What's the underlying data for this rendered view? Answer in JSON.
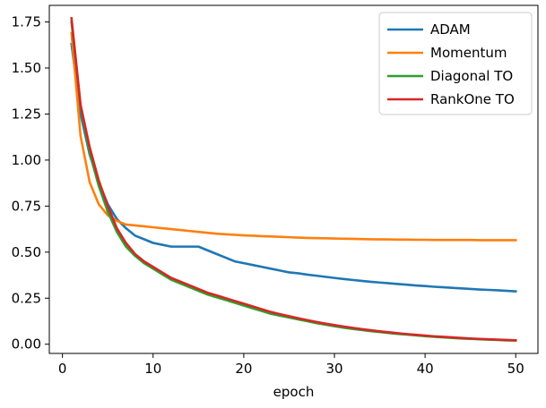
{
  "chart_data": {
    "type": "line",
    "title": "",
    "xlabel": "epoch",
    "ylabel": "",
    "xlim": [
      -1.45,
      52.45
    ],
    "ylim": [
      -0.05,
      1.84
    ],
    "x": [
      1,
      2,
      3,
      4,
      5,
      6,
      7,
      8,
      9,
      10,
      11,
      12,
      13,
      14,
      15,
      16,
      17,
      18,
      19,
      20,
      21,
      22,
      23,
      24,
      25,
      26,
      27,
      28,
      29,
      30,
      31,
      32,
      33,
      34,
      35,
      36,
      37,
      38,
      39,
      40,
      41,
      42,
      43,
      44,
      45,
      46,
      47,
      48,
      49,
      50
    ],
    "x_ticks": [
      0,
      10,
      20,
      30,
      40,
      50
    ],
    "x_tick_labels": [
      "0",
      "10",
      "20",
      "30",
      "40",
      "50"
    ],
    "y_ticks": [
      0.0,
      0.25,
      0.5,
      0.75,
      1.0,
      1.25,
      1.5,
      1.75
    ],
    "y_tick_labels": [
      "0.00",
      "0.25",
      "0.50",
      "0.75",
      "1.00",
      "1.25",
      "1.50",
      "1.75"
    ],
    "grid": false,
    "legend_position": "top-right",
    "series": [
      {
        "name": "ADAM",
        "color": "#1f77b4",
        "values": [
          1.63,
          1.25,
          1.03,
          0.88,
          0.76,
          0.68,
          0.63,
          0.59,
          0.57,
          0.55,
          0.54,
          0.53,
          0.53,
          0.53,
          0.53,
          0.51,
          0.49,
          0.47,
          0.45,
          0.44,
          0.43,
          0.42,
          0.41,
          0.4,
          0.39,
          0.385,
          0.378,
          0.372,
          0.366,
          0.36,
          0.354,
          0.349,
          0.344,
          0.339,
          0.335,
          0.331,
          0.327,
          0.323,
          0.319,
          0.316,
          0.312,
          0.309,
          0.306,
          0.303,
          0.3,
          0.297,
          0.295,
          0.293,
          0.29,
          0.287
        ]
      },
      {
        "name": "Momentum",
        "color": "#ff7f0e",
        "values": [
          1.69,
          1.13,
          0.88,
          0.76,
          0.7,
          0.67,
          0.65,
          0.645,
          0.64,
          0.635,
          0.63,
          0.625,
          0.62,
          0.615,
          0.61,
          0.605,
          0.6,
          0.597,
          0.594,
          0.591,
          0.589,
          0.587,
          0.585,
          0.583,
          0.581,
          0.579,
          0.577,
          0.576,
          0.575,
          0.574,
          0.573,
          0.572,
          0.571,
          0.57,
          0.569,
          0.569,
          0.568,
          0.568,
          0.567,
          0.567,
          0.566,
          0.566,
          0.566,
          0.566,
          0.566,
          0.565,
          0.565,
          0.565,
          0.565,
          0.565
        ]
      },
      {
        "name": "Diagonal TO",
        "color": "#2ca02c",
        "values": [
          1.75,
          1.29,
          1.04,
          0.86,
          0.72,
          0.61,
          0.53,
          0.48,
          0.44,
          0.41,
          0.38,
          0.35,
          0.33,
          0.31,
          0.29,
          0.27,
          0.255,
          0.24,
          0.225,
          0.21,
          0.195,
          0.18,
          0.165,
          0.155,
          0.145,
          0.135,
          0.125,
          0.115,
          0.106,
          0.098,
          0.09,
          0.083,
          0.077,
          0.071,
          0.066,
          0.061,
          0.056,
          0.052,
          0.048,
          0.044,
          0.04,
          0.037,
          0.034,
          0.031,
          0.029,
          0.027,
          0.025,
          0.023,
          0.021,
          0.02
        ]
      },
      {
        "name": "RankOne TO",
        "color": "#d62728",
        "values": [
          1.77,
          1.3,
          1.07,
          0.89,
          0.75,
          0.63,
          0.55,
          0.49,
          0.45,
          0.42,
          0.39,
          0.36,
          0.34,
          0.32,
          0.3,
          0.28,
          0.265,
          0.25,
          0.235,
          0.22,
          0.205,
          0.19,
          0.175,
          0.163,
          0.152,
          0.141,
          0.131,
          0.121,
          0.112,
          0.104,
          0.096,
          0.089,
          0.082,
          0.076,
          0.07,
          0.065,
          0.06,
          0.055,
          0.051,
          0.047,
          0.043,
          0.04,
          0.037,
          0.034,
          0.031,
          0.029,
          0.027,
          0.025,
          0.023,
          0.021
        ]
      }
    ]
  }
}
